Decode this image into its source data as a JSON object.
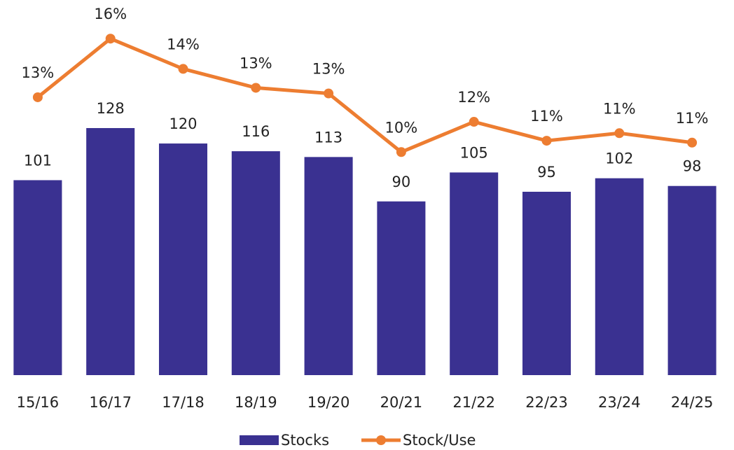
{
  "chart_data": {
    "type": "combo",
    "categories": [
      "15/16",
      "16/17",
      "17/18",
      "18/19",
      "19/20",
      "20/21",
      "21/22",
      "22/23",
      "23/24",
      "24/25"
    ],
    "series": [
      {
        "name": "Stocks",
        "type": "bar",
        "color": "#3a3191",
        "values": [
          101,
          128,
          120,
          116,
          113,
          90,
          105,
          95,
          102,
          98
        ]
      },
      {
        "name": "Stock/Use",
        "type": "line",
        "axis": "y2",
        "color": "#ed7d31",
        "values": [
          12.9,
          16.0,
          14.4,
          13.4,
          13.1,
          10.0,
          11.6,
          10.6,
          11.0,
          10.5
        ],
        "value_labels": [
          "13%",
          "16%",
          "14%",
          "13%",
          "13%",
          "10%",
          "12%",
          "11%",
          "11%",
          "11%"
        ]
      }
    ],
    "ylim": [
      0,
      190
    ],
    "y2lim": [
      -1.8,
      17.6
    ],
    "legend": "bottom"
  }
}
